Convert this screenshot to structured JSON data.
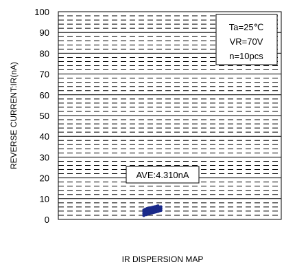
{
  "chart_data": {
    "type": "scatter",
    "title": "IR DISPERSION MAP",
    "ylabel": "REVERSE CURRENT:IR(nA)",
    "xlabel": "",
    "ylim": [
      0,
      100
    ],
    "yticks": [
      "0",
      "10",
      "20",
      "30",
      "40",
      "50",
      "60",
      "70",
      "80",
      "90",
      "100"
    ],
    "grid": true,
    "conditions": [
      "Ta=25℃",
      "VR=70V",
      "n=10pcs"
    ],
    "average_label": "AVE:4.310nA",
    "point_color": "#1a2a8a",
    "series": [
      {
        "values": [
          3.2,
          3.6,
          3.9,
          4.1,
          4.3,
          4.4,
          4.6,
          4.8,
          5.0,
          5.2
        ]
      }
    ]
  }
}
